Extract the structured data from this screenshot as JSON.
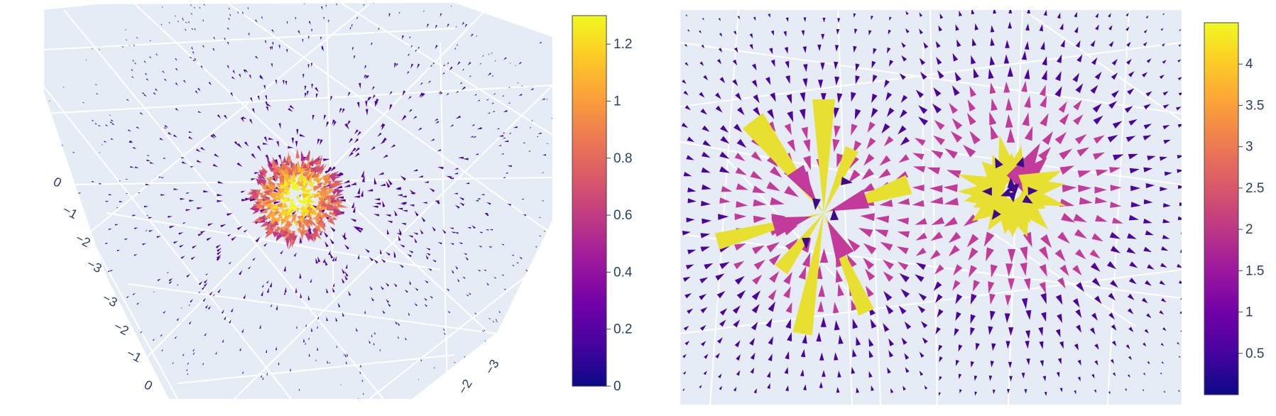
{
  "chart_data": [
    {
      "type": "cone",
      "title": "",
      "scene_background": "#e5ecf6",
      "grid_color": "#ffffff",
      "axis_ticks": {
        "left_axis": [
          "0",
          "−1",
          "−2",
          "−3",
          "−3",
          "−2",
          "−1",
          "0"
        ],
        "bottom_axis": [
          "−3",
          "−2"
        ]
      },
      "colorbar": {
        "min": 0,
        "max": 1.3,
        "ticks": [
          0,
          0.2,
          0.4,
          0.6,
          0.8,
          1,
          1.2
        ],
        "tick_labels": [
          "0",
          "0.2",
          "0.4",
          "0.6",
          "0.8",
          "1",
          "1.2"
        ],
        "colorscale": "plasma"
      }
    },
    {
      "type": "cone",
      "title": "",
      "scene_background": "#e5ecf6",
      "grid_color": "#ffffff",
      "colorbar": {
        "min": 0,
        "max": 4.5,
        "ticks": [
          0.5,
          1,
          1.5,
          2,
          2.5,
          3,
          3.5,
          4
        ],
        "tick_labels": [
          "0.5",
          "1",
          "1.5",
          "2",
          "2.5",
          "3",
          "3.5",
          "4"
        ],
        "colorscale": "plasma"
      }
    }
  ],
  "colors": {
    "plasma": [
      "#0d0887",
      "#46039f",
      "#7201a8",
      "#9c179e",
      "#bd3786",
      "#d8576b",
      "#ed7953",
      "#fb9f3a",
      "#fdca26",
      "#f0f921"
    ],
    "cone_yellow": "#e8e030",
    "cone_magenta": "#c23a9a",
    "cone_purple": "#3d0a8c"
  }
}
